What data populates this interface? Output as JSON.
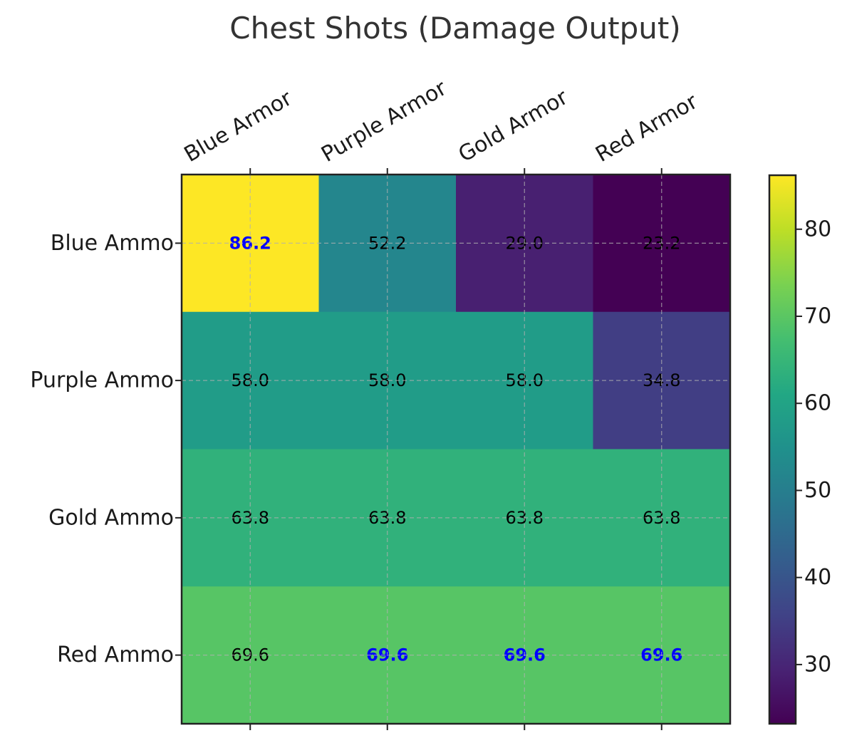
{
  "chart_data": {
    "type": "heatmap",
    "title": "Chest Shots (Damage Output)",
    "x_categories": [
      "Blue Armor",
      "Purple Armor",
      "Gold Armor",
      "Red Armor"
    ],
    "y_categories": [
      "Blue Ammo",
      "Purple Ammo",
      "Gold Ammo",
      "Red Ammo"
    ],
    "values": [
      [
        86.2,
        52.2,
        29.0,
        23.2
      ],
      [
        58.0,
        58.0,
        58.0,
        34.8
      ],
      [
        63.8,
        63.8,
        63.8,
        63.8
      ],
      [
        69.6,
        69.6,
        69.6,
        69.6
      ]
    ],
    "value_labels": [
      [
        "86.2",
        "52.2",
        "29.0",
        "23.2"
      ],
      [
        "58.0",
        "58.0",
        "58.0",
        "34.8"
      ],
      [
        "63.8",
        "63.8",
        "63.8",
        "63.8"
      ],
      [
        "69.6",
        "69.6",
        "69.6",
        "69.6"
      ]
    ],
    "highlighted": [
      [
        true,
        false,
        false,
        false
      ],
      [
        false,
        false,
        false,
        false
      ],
      [
        false,
        false,
        false,
        false
      ],
      [
        false,
        true,
        true,
        true
      ]
    ],
    "highlight_color": "#0000ff",
    "label_color": "#000000",
    "colormap": "viridis",
    "vmin": 23.2,
    "vmax": 86.2,
    "colorbar_ticks": [
      30,
      40,
      50,
      60,
      70,
      80
    ],
    "grid": true,
    "x_axis_position": "top"
  }
}
